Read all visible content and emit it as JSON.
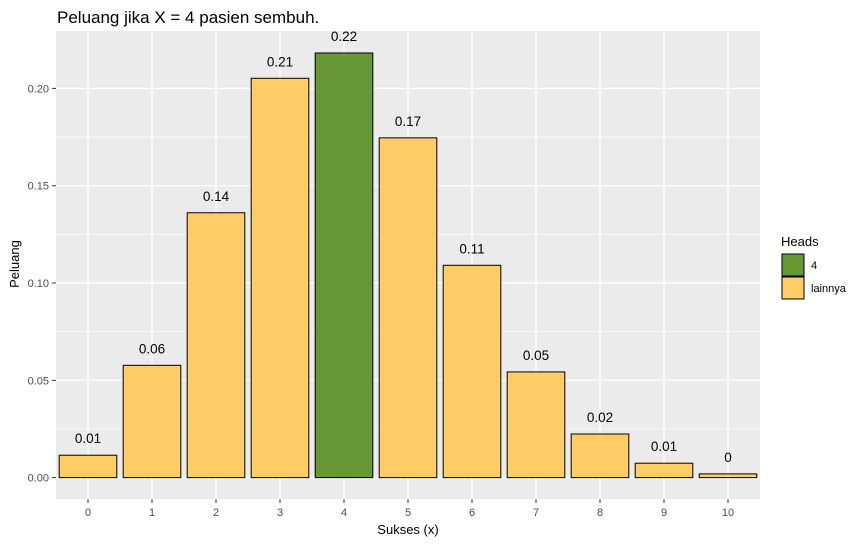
{
  "chart_data": {
    "type": "bar",
    "title": "Peluang jika X = 4 pasien sembuh.",
    "xlabel": "Sukses (x)",
    "ylabel": "Peluang",
    "categories": [
      "0",
      "1",
      "2",
      "3",
      "4",
      "5",
      "6",
      "7",
      "8",
      "9",
      "10"
    ],
    "values": [
      0.0115,
      0.0577,
      0.1361,
      0.2052,
      0.2182,
      0.1746,
      0.1091,
      0.0543,
      0.0224,
      0.0074,
      0.0019
    ],
    "data_labels": [
      "0.01",
      "0.06",
      "0.14",
      "0.21",
      "0.22",
      "0.17",
      "0.11",
      "0.05",
      "0.02",
      "0.01",
      "0"
    ],
    "groups": [
      "lainnya",
      "lainnya",
      "lainnya",
      "lainnya",
      "4",
      "lainnya",
      "lainnya",
      "lainnya",
      "lainnya",
      "lainnya",
      "lainnya"
    ],
    "ylim": [
      -0.011,
      0.2295
    ],
    "yticks": [
      0.0,
      0.05,
      0.1,
      0.15,
      0.2
    ],
    "ytick_labels": [
      "0.00",
      "0.05",
      "0.10",
      "0.15",
      "0.20"
    ],
    "grid": true,
    "legend": {
      "title": "Heads",
      "position": "right",
      "entries": [
        {
          "label": "4",
          "color": "#669933"
        },
        {
          "label": "lainnya",
          "color": "#FFCC66"
        }
      ]
    },
    "colors": {
      "4": "#669933",
      "lainnya": "#FFCC66",
      "panel_background": "#EBEBEB",
      "grid_major": "#FFFFFF",
      "bar_outline": "#000000"
    }
  }
}
